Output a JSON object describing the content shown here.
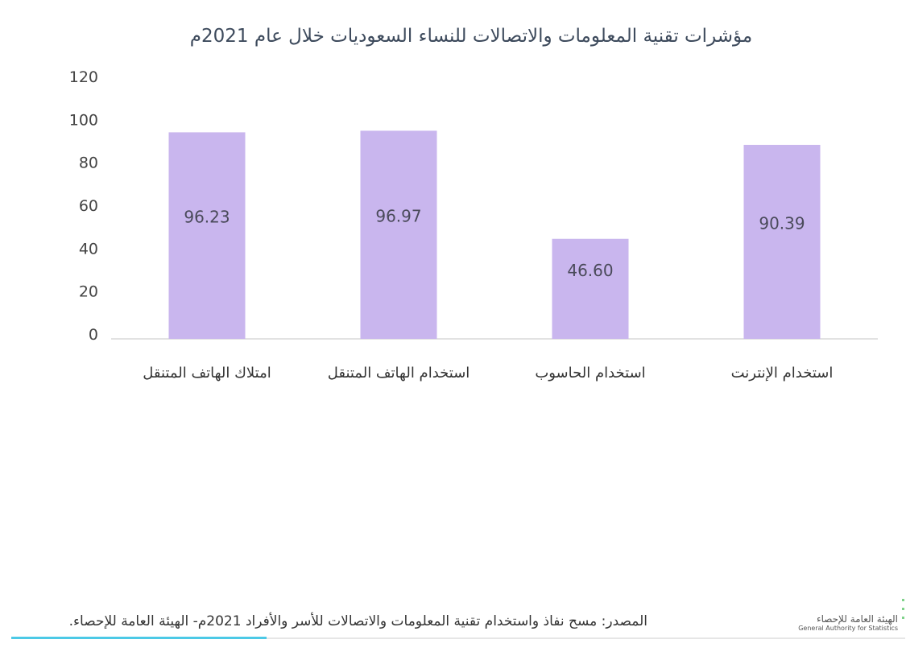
{
  "chart_data": {
    "type": "bar",
    "title": "مؤشرات تقنية المعلومات والاتصالات للنساء السعوديات خلال عام 2021م",
    "categories": [
      "امتلاك الهاتف المتنقل",
      "استخدام الهاتف المتنقل",
      "استخدام الحاسوب",
      "استخدام الإنترنت"
    ],
    "values": [
      96.23,
      96.97,
      46.6,
      90.39
    ],
    "value_labels": [
      "96.23",
      "96.97",
      "46.60",
      "90.39"
    ],
    "ylim": [
      0,
      120
    ],
    "yticks": [
      "0",
      "20",
      "40",
      "60",
      "80",
      "100",
      "120"
    ],
    "xlabel": "",
    "ylabel": "",
    "grid": false,
    "bar_color": "#c9b6ee"
  },
  "footer": {
    "source": "المصدر: مسح نفاذ واستخدام تقنية المعلومات والاتصالات للأسر والأفراد 2021م- الهيئة العامة للإحصاء.",
    "logo_ar": "الهيئة العامة للإحصاء",
    "logo_en": "General Authority for Statistics"
  }
}
